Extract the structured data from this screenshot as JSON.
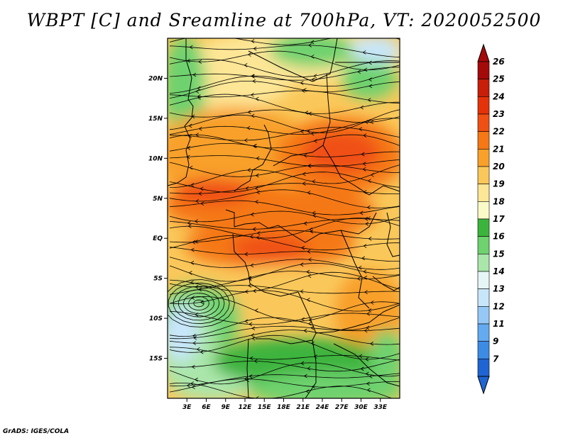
{
  "title": "WBPT [C] and Sreamline at 700hPa, VT: 2020052500",
  "credit": "GrADS: IGES/COLA",
  "map": {
    "variable": "WBPT [C]",
    "overlay": "Streamline",
    "level": "700hPa",
    "valid_time": "2020052500",
    "lon_range": [
      0,
      36
    ],
    "lat_range": [
      -20,
      25
    ],
    "lat_ticks": [
      {
        "value": 20,
        "label": "20N"
      },
      {
        "value": 15,
        "label": "15N"
      },
      {
        "value": 10,
        "label": "10N"
      },
      {
        "value": 5,
        "label": "5N"
      },
      {
        "value": 0,
        "label": "EQ"
      },
      {
        "value": -5,
        "label": "5S"
      },
      {
        "value": -10,
        "label": "10S"
      },
      {
        "value": -15,
        "label": "15S"
      }
    ],
    "lon_ticks": [
      {
        "value": 3,
        "label": "3E"
      },
      {
        "value": 6,
        "label": "6E"
      },
      {
        "value": 9,
        "label": "9E"
      },
      {
        "value": 12,
        "label": "12E"
      },
      {
        "value": 15,
        "label": "15E"
      },
      {
        "value": 18,
        "label": "18E"
      },
      {
        "value": 21,
        "label": "21E"
      },
      {
        "value": 24,
        "label": "24E"
      },
      {
        "value": 27,
        "label": "27E"
      },
      {
        "value": 30,
        "label": "30E"
      },
      {
        "value": 33,
        "label": "33E"
      }
    ]
  },
  "colorbar": {
    "labels": [
      "26",
      "25",
      "24",
      "23",
      "22",
      "21",
      "20",
      "19",
      "18",
      "17",
      "16",
      "15",
      "14",
      "13",
      "12",
      "11",
      "9",
      "7"
    ],
    "colors": [
      "#a50a0a",
      "#c81e0a",
      "#e6320a",
      "#f05014",
      "#f57814",
      "#f8a02a",
      "#fac85a",
      "#fde696",
      "#fafac8",
      "#3cb43c",
      "#6ed26e",
      "#aae6aa",
      "#e6f5f5",
      "#c8e6fa",
      "#96c8f5",
      "#64aaf0",
      "#3c8ce6",
      "#1e64d2"
    ],
    "top_arrow_color": "#a50a0a",
    "bottom_arrow_color": "#1e64d2"
  }
}
